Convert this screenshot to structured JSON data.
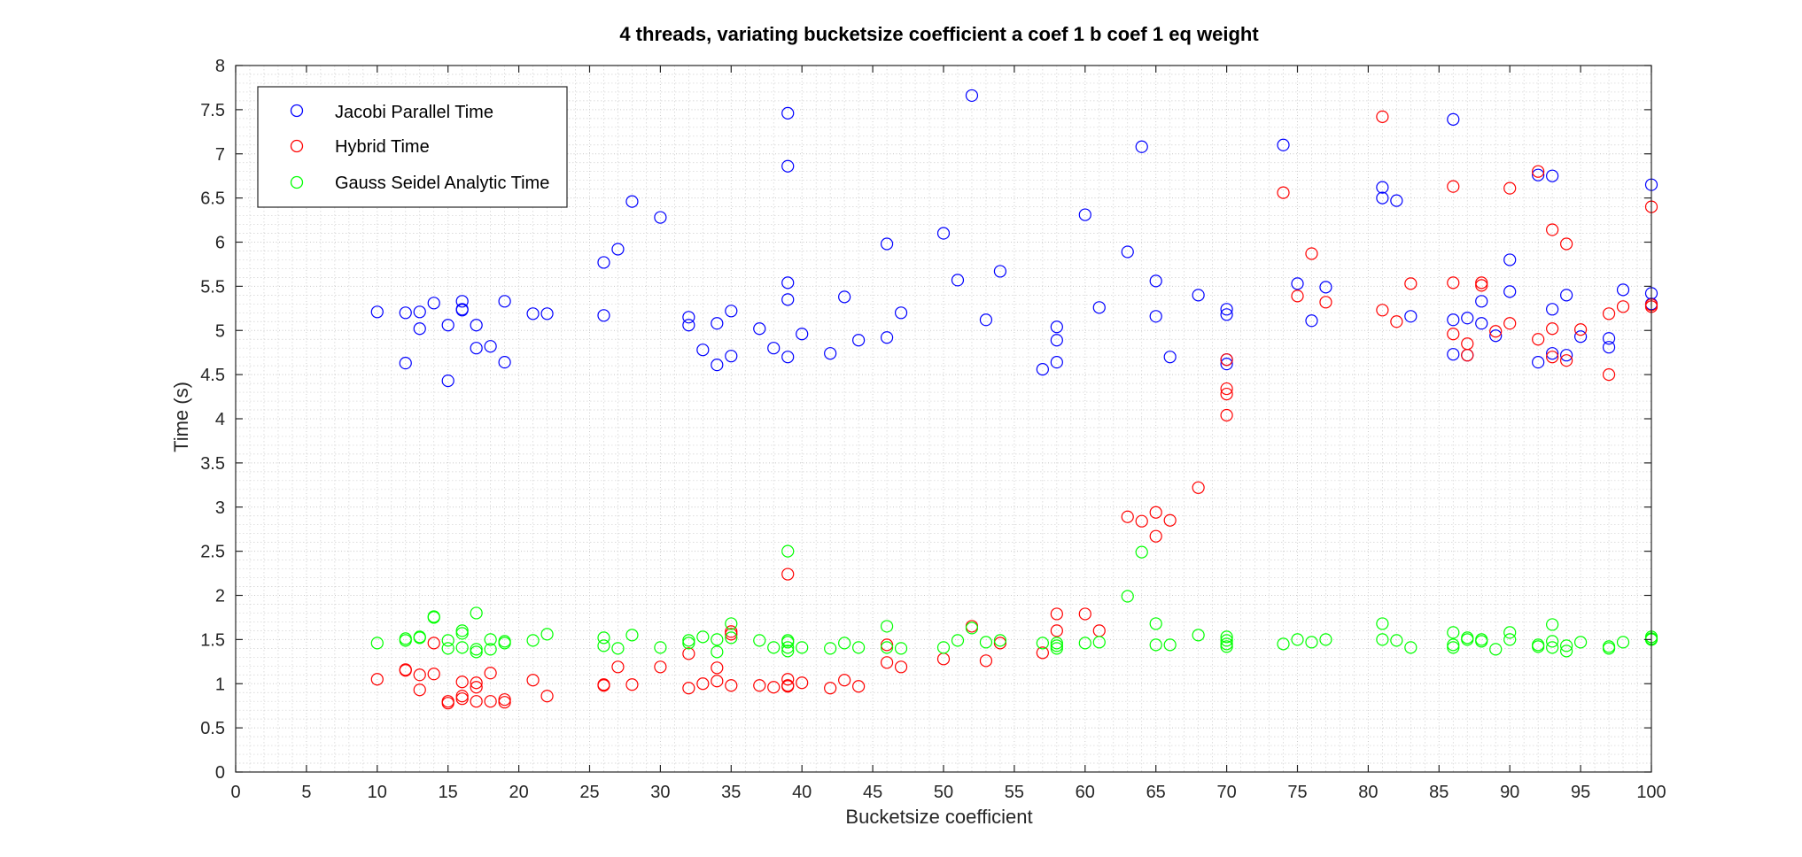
{
  "chart_data": {
    "type": "scatter",
    "title": "4 threads, variating bucketsize coefficient a coef 1 b coef 1 eq weight",
    "xlabel": "Bucketsize coefficient",
    "ylabel": "Time (s)",
    "xlim": [
      0,
      100
    ],
    "ylim": [
      0,
      8
    ],
    "xticks": [
      0,
      5,
      10,
      15,
      20,
      25,
      30,
      35,
      40,
      45,
      50,
      55,
      60,
      65,
      70,
      75,
      80,
      85,
      90,
      95,
      100
    ],
    "yticks": [
      0,
      0.5,
      1,
      1.5,
      2,
      2.5,
      3,
      3.5,
      4,
      4.5,
      5,
      5.5,
      6,
      6.5,
      7,
      7.5,
      8
    ],
    "yticklabels": [
      "0",
      "0.5",
      "1",
      "1.5",
      "2",
      "2.5",
      "3",
      "3.5",
      "4",
      "4.5",
      "5",
      "5.5",
      "6",
      "6.5",
      "7",
      "7.5",
      "8"
    ],
    "grid": true,
    "minor_grid": true,
    "legend_position": "top-left",
    "marker": "circle-open",
    "series": [
      {
        "name": "Jacobi Parallel Time",
        "color": "#0000ff",
        "points": [
          [
            10,
            5.21
          ],
          [
            12,
            4.63
          ],
          [
            12,
            5.2
          ],
          [
            13,
            5.21
          ],
          [
            13,
            5.02
          ],
          [
            14,
            5.31
          ],
          [
            15,
            5.06
          ],
          [
            15,
            4.43
          ],
          [
            16,
            5.33
          ],
          [
            16,
            5.24
          ],
          [
            16,
            5.23
          ],
          [
            17,
            5.06
          ],
          [
            17,
            4.8
          ],
          [
            18,
            4.82
          ],
          [
            19,
            5.33
          ],
          [
            19,
            4.64
          ],
          [
            21,
            5.19
          ],
          [
            22,
            5.19
          ],
          [
            26,
            5.77
          ],
          [
            26,
            5.17
          ],
          [
            27,
            5.92
          ],
          [
            28,
            6.46
          ],
          [
            30,
            6.28
          ],
          [
            32,
            5.15
          ],
          [
            32,
            5.06
          ],
          [
            33,
            4.78
          ],
          [
            34,
            5.08
          ],
          [
            34,
            4.61
          ],
          [
            35,
            5.22
          ],
          [
            35,
            4.71
          ],
          [
            37,
            5.02
          ],
          [
            38,
            4.8
          ],
          [
            39,
            7.46
          ],
          [
            39,
            6.86
          ],
          [
            39,
            5.54
          ],
          [
            39,
            5.35
          ],
          [
            39,
            4.7
          ],
          [
            40,
            4.96
          ],
          [
            42,
            4.74
          ],
          [
            43,
            5.38
          ],
          [
            44,
            4.89
          ],
          [
            46,
            5.98
          ],
          [
            46,
            4.92
          ],
          [
            47,
            5.2
          ],
          [
            50,
            6.1
          ],
          [
            51,
            5.57
          ],
          [
            52,
            7.66
          ],
          [
            53,
            5.12
          ],
          [
            54,
            5.67
          ],
          [
            57,
            4.56
          ],
          [
            58,
            5.04
          ],
          [
            58,
            4.89
          ],
          [
            58,
            4.64
          ],
          [
            60,
            6.31
          ],
          [
            61,
            5.26
          ],
          [
            63,
            5.89
          ],
          [
            64,
            7.08
          ],
          [
            65,
            5.56
          ],
          [
            65,
            5.16
          ],
          [
            66,
            4.7
          ],
          [
            68,
            5.4
          ],
          [
            70,
            5.24
          ],
          [
            70,
            5.18
          ],
          [
            70,
            4.67
          ],
          [
            70,
            4.62
          ],
          [
            74,
            7.1
          ],
          [
            75,
            5.53
          ],
          [
            76,
            5.11
          ],
          [
            77,
            5.49
          ],
          [
            81,
            6.62
          ],
          [
            81,
            6.5
          ],
          [
            82,
            6.47
          ],
          [
            83,
            5.16
          ],
          [
            86,
            7.39
          ],
          [
            86,
            5.12
          ],
          [
            86,
            4.73
          ],
          [
            87,
            5.14
          ],
          [
            87,
            4.72
          ],
          [
            88,
            5.33
          ],
          [
            88,
            5.08
          ],
          [
            89,
            4.94
          ],
          [
            90,
            5.8
          ],
          [
            90,
            5.44
          ],
          [
            92,
            6.76
          ],
          [
            92,
            4.64
          ],
          [
            93,
            6.75
          ],
          [
            93,
            5.24
          ],
          [
            93,
            4.74
          ],
          [
            94,
            5.4
          ],
          [
            94,
            4.72
          ],
          [
            95,
            4.93
          ],
          [
            97,
            4.91
          ],
          [
            97,
            4.81
          ],
          [
            98,
            5.46
          ],
          [
            100,
            6.65
          ],
          [
            100,
            5.42
          ],
          [
            100,
            5.3
          ]
        ]
      },
      {
        "name": "Hybrid Time",
        "color": "#ff0000",
        "points": [
          [
            10,
            1.05
          ],
          [
            12,
            1.16
          ],
          [
            12,
            1.15
          ],
          [
            13,
            1.1
          ],
          [
            13,
            0.93
          ],
          [
            14,
            1.46
          ],
          [
            14,
            1.11
          ],
          [
            15,
            0.8
          ],
          [
            15,
            0.78
          ],
          [
            16,
            1.02
          ],
          [
            16,
            0.86
          ],
          [
            16,
            0.83
          ],
          [
            17,
            1.01
          ],
          [
            17,
            0.96
          ],
          [
            17,
            0.8
          ],
          [
            18,
            1.12
          ],
          [
            18,
            0.8
          ],
          [
            19,
            0.82
          ],
          [
            19,
            0.79
          ],
          [
            21,
            1.04
          ],
          [
            22,
            0.86
          ],
          [
            26,
            0.98
          ],
          [
            26,
            0.99
          ],
          [
            27,
            1.19
          ],
          [
            28,
            0.99
          ],
          [
            30,
            1.19
          ],
          [
            32,
            1.34
          ],
          [
            32,
            0.95
          ],
          [
            33,
            1.0
          ],
          [
            34,
            1.18
          ],
          [
            34,
            1.03
          ],
          [
            35,
            1.59
          ],
          [
            35,
            1.56
          ],
          [
            35,
            0.98
          ],
          [
            37,
            0.98
          ],
          [
            38,
            0.96
          ],
          [
            39,
            2.24
          ],
          [
            39,
            1.05
          ],
          [
            39,
            0.98
          ],
          [
            39,
            0.97
          ],
          [
            40,
            1.01
          ],
          [
            42,
            0.95
          ],
          [
            43,
            1.04
          ],
          [
            44,
            0.97
          ],
          [
            46,
            1.44
          ],
          [
            46,
            1.24
          ],
          [
            47,
            1.19
          ],
          [
            50,
            1.28
          ],
          [
            52,
            1.65
          ],
          [
            53,
            1.26
          ],
          [
            54,
            1.46
          ],
          [
            57,
            1.35
          ],
          [
            58,
            1.79
          ],
          [
            58,
            1.6
          ],
          [
            60,
            1.79
          ],
          [
            61,
            1.6
          ],
          [
            63,
            2.89
          ],
          [
            64,
            2.84
          ],
          [
            65,
            2.94
          ],
          [
            65,
            2.67
          ],
          [
            66,
            2.85
          ],
          [
            68,
            3.22
          ],
          [
            70,
            4.67
          ],
          [
            70,
            4.34
          ],
          [
            70,
            4.28
          ],
          [
            70,
            4.04
          ],
          [
            74,
            6.56
          ],
          [
            75,
            5.39
          ],
          [
            76,
            5.87
          ],
          [
            77,
            5.32
          ],
          [
            81,
            7.42
          ],
          [
            81,
            5.23
          ],
          [
            82,
            5.1
          ],
          [
            83,
            5.53
          ],
          [
            86,
            6.63
          ],
          [
            86,
            5.54
          ],
          [
            86,
            4.96
          ],
          [
            87,
            4.85
          ],
          [
            87,
            4.72
          ],
          [
            88,
            5.54
          ],
          [
            88,
            5.51
          ],
          [
            89,
            4.99
          ],
          [
            90,
            6.61
          ],
          [
            90,
            5.08
          ],
          [
            92,
            6.8
          ],
          [
            92,
            4.9
          ],
          [
            93,
            6.14
          ],
          [
            93,
            5.02
          ],
          [
            93,
            4.7
          ],
          [
            94,
            5.98
          ],
          [
            94,
            4.66
          ],
          [
            95,
            5.01
          ],
          [
            97,
            5.19
          ],
          [
            97,
            4.5
          ],
          [
            98,
            5.27
          ],
          [
            100,
            6.4
          ],
          [
            100,
            5.27
          ],
          [
            100,
            5.29
          ]
        ]
      },
      {
        "name": "Gauss Seidel Analytic Time",
        "color": "#00ff00",
        "points": [
          [
            10,
            1.46
          ],
          [
            12,
            1.51
          ],
          [
            12,
            1.49
          ],
          [
            13,
            1.53
          ],
          [
            13,
            1.52
          ],
          [
            14,
            1.76
          ],
          [
            14,
            1.75
          ],
          [
            15,
            1.49
          ],
          [
            15,
            1.4
          ],
          [
            16,
            1.6
          ],
          [
            16,
            1.57
          ],
          [
            16,
            1.41
          ],
          [
            17,
            1.8
          ],
          [
            17,
            1.39
          ],
          [
            17,
            1.36
          ],
          [
            18,
            1.5
          ],
          [
            18,
            1.39
          ],
          [
            19,
            1.48
          ],
          [
            19,
            1.46
          ],
          [
            21,
            1.49
          ],
          [
            22,
            1.56
          ],
          [
            26,
            1.52
          ],
          [
            26,
            1.43
          ],
          [
            27,
            1.4
          ],
          [
            28,
            1.55
          ],
          [
            30,
            1.41
          ],
          [
            32,
            1.49
          ],
          [
            32,
            1.46
          ],
          [
            33,
            1.53
          ],
          [
            34,
            1.5
          ],
          [
            34,
            1.36
          ],
          [
            35,
            1.68
          ],
          [
            35,
            1.52
          ],
          [
            37,
            1.49
          ],
          [
            38,
            1.41
          ],
          [
            39,
            2.5
          ],
          [
            39,
            1.49
          ],
          [
            39,
            1.47
          ],
          [
            39,
            1.41
          ],
          [
            39,
            1.37
          ],
          [
            40,
            1.41
          ],
          [
            42,
            1.4
          ],
          [
            43,
            1.46
          ],
          [
            44,
            1.41
          ],
          [
            46,
            1.65
          ],
          [
            46,
            1.41
          ],
          [
            47,
            1.4
          ],
          [
            50,
            1.41
          ],
          [
            51,
            1.49
          ],
          [
            52,
            1.63
          ],
          [
            53,
            1.47
          ],
          [
            54,
            1.49
          ],
          [
            57,
            1.46
          ],
          [
            58,
            1.46
          ],
          [
            58,
            1.43
          ],
          [
            58,
            1.4
          ],
          [
            60,
            1.46
          ],
          [
            61,
            1.47
          ],
          [
            63,
            1.99
          ],
          [
            64,
            2.49
          ],
          [
            65,
            1.68
          ],
          [
            65,
            1.44
          ],
          [
            66,
            1.44
          ],
          [
            68,
            1.55
          ],
          [
            70,
            1.53
          ],
          [
            70,
            1.49
          ],
          [
            70,
            1.45
          ],
          [
            70,
            1.42
          ],
          [
            74,
            1.45
          ],
          [
            75,
            1.5
          ],
          [
            76,
            1.47
          ],
          [
            77,
            1.5
          ],
          [
            81,
            1.68
          ],
          [
            81,
            1.5
          ],
          [
            82,
            1.49
          ],
          [
            83,
            1.41
          ],
          [
            86,
            1.58
          ],
          [
            86,
            1.44
          ],
          [
            86,
            1.41
          ],
          [
            87,
            1.52
          ],
          [
            87,
            1.5
          ],
          [
            88,
            1.5
          ],
          [
            88,
            1.48
          ],
          [
            89,
            1.39
          ],
          [
            90,
            1.58
          ],
          [
            90,
            1.5
          ],
          [
            92,
            1.44
          ],
          [
            92,
            1.42
          ],
          [
            93,
            1.67
          ],
          [
            93,
            1.48
          ],
          [
            93,
            1.41
          ],
          [
            94,
            1.43
          ],
          [
            94,
            1.37
          ],
          [
            95,
            1.47
          ],
          [
            97,
            1.42
          ],
          [
            97,
            1.4
          ],
          [
            98,
            1.47
          ],
          [
            100,
            1.53
          ],
          [
            100,
            1.51
          ],
          [
            100,
            1.5
          ]
        ]
      }
    ]
  }
}
